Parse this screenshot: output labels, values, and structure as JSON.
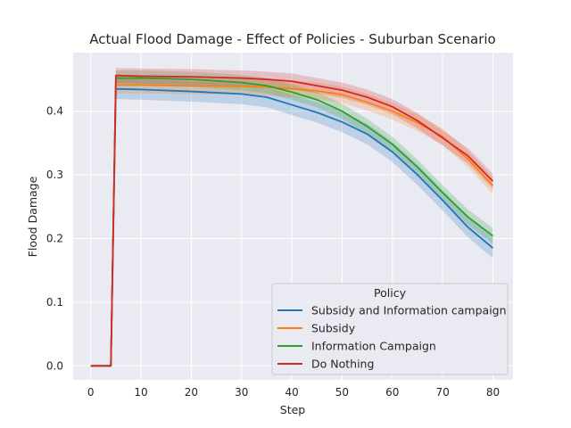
{
  "chart_data": {
    "type": "line",
    "title": "Actual Flood Damage - Effect of Policies - Suburban Scenario",
    "xlabel": "Step",
    "ylabel": "Flood Damage",
    "xlim": [
      -3.5,
      84
    ],
    "ylim": [
      -0.022,
      0.492
    ],
    "xticks": [
      0,
      10,
      20,
      30,
      40,
      50,
      60,
      70,
      80
    ],
    "yticks": [
      0.0,
      0.1,
      0.2,
      0.3,
      0.4
    ],
    "xtick_labels": [
      "0",
      "10",
      "20",
      "30",
      "40",
      "50",
      "60",
      "70",
      "80"
    ],
    "ytick_labels": [
      "0.0",
      "0.1",
      "0.2",
      "0.3",
      "0.4"
    ],
    "grid": true,
    "legend": {
      "title": "Policy",
      "placement": "lower-right"
    },
    "x": [
      0,
      4,
      5,
      10,
      20,
      30,
      35,
      40,
      45,
      50,
      55,
      60,
      65,
      70,
      75,
      80
    ],
    "series": [
      {
        "name": "Subsidy and Information campaign",
        "color": "#1f77b4",
        "values": [
          0,
          0,
          0.435,
          0.434,
          0.431,
          0.427,
          0.422,
          0.41,
          0.398,
          0.383,
          0.364,
          0.336,
          0.3,
          0.26,
          0.218,
          0.185
        ],
        "ci": 0.016
      },
      {
        "name": "Subsidy",
        "color": "#ff7f0e",
        "values": [
          0,
          0,
          0.441,
          0.441,
          0.44,
          0.439,
          0.438,
          0.435,
          0.432,
          0.426,
          0.414,
          0.4,
          0.382,
          0.36,
          0.325,
          0.283
        ],
        "ci": 0.013
      },
      {
        "name": "Information Campaign",
        "color": "#2ca02c",
        "values": [
          0,
          0,
          0.452,
          0.452,
          0.45,
          0.445,
          0.44,
          0.43,
          0.418,
          0.4,
          0.376,
          0.348,
          0.312,
          0.272,
          0.234,
          0.204
        ],
        "ci": 0.012
      },
      {
        "name": "Do Nothing",
        "color": "#d62728",
        "values": [
          0,
          0,
          0.456,
          0.455,
          0.454,
          0.452,
          0.45,
          0.447,
          0.44,
          0.433,
          0.422,
          0.407,
          0.385,
          0.358,
          0.33,
          0.29
        ],
        "ci": 0.012
      }
    ]
  }
}
